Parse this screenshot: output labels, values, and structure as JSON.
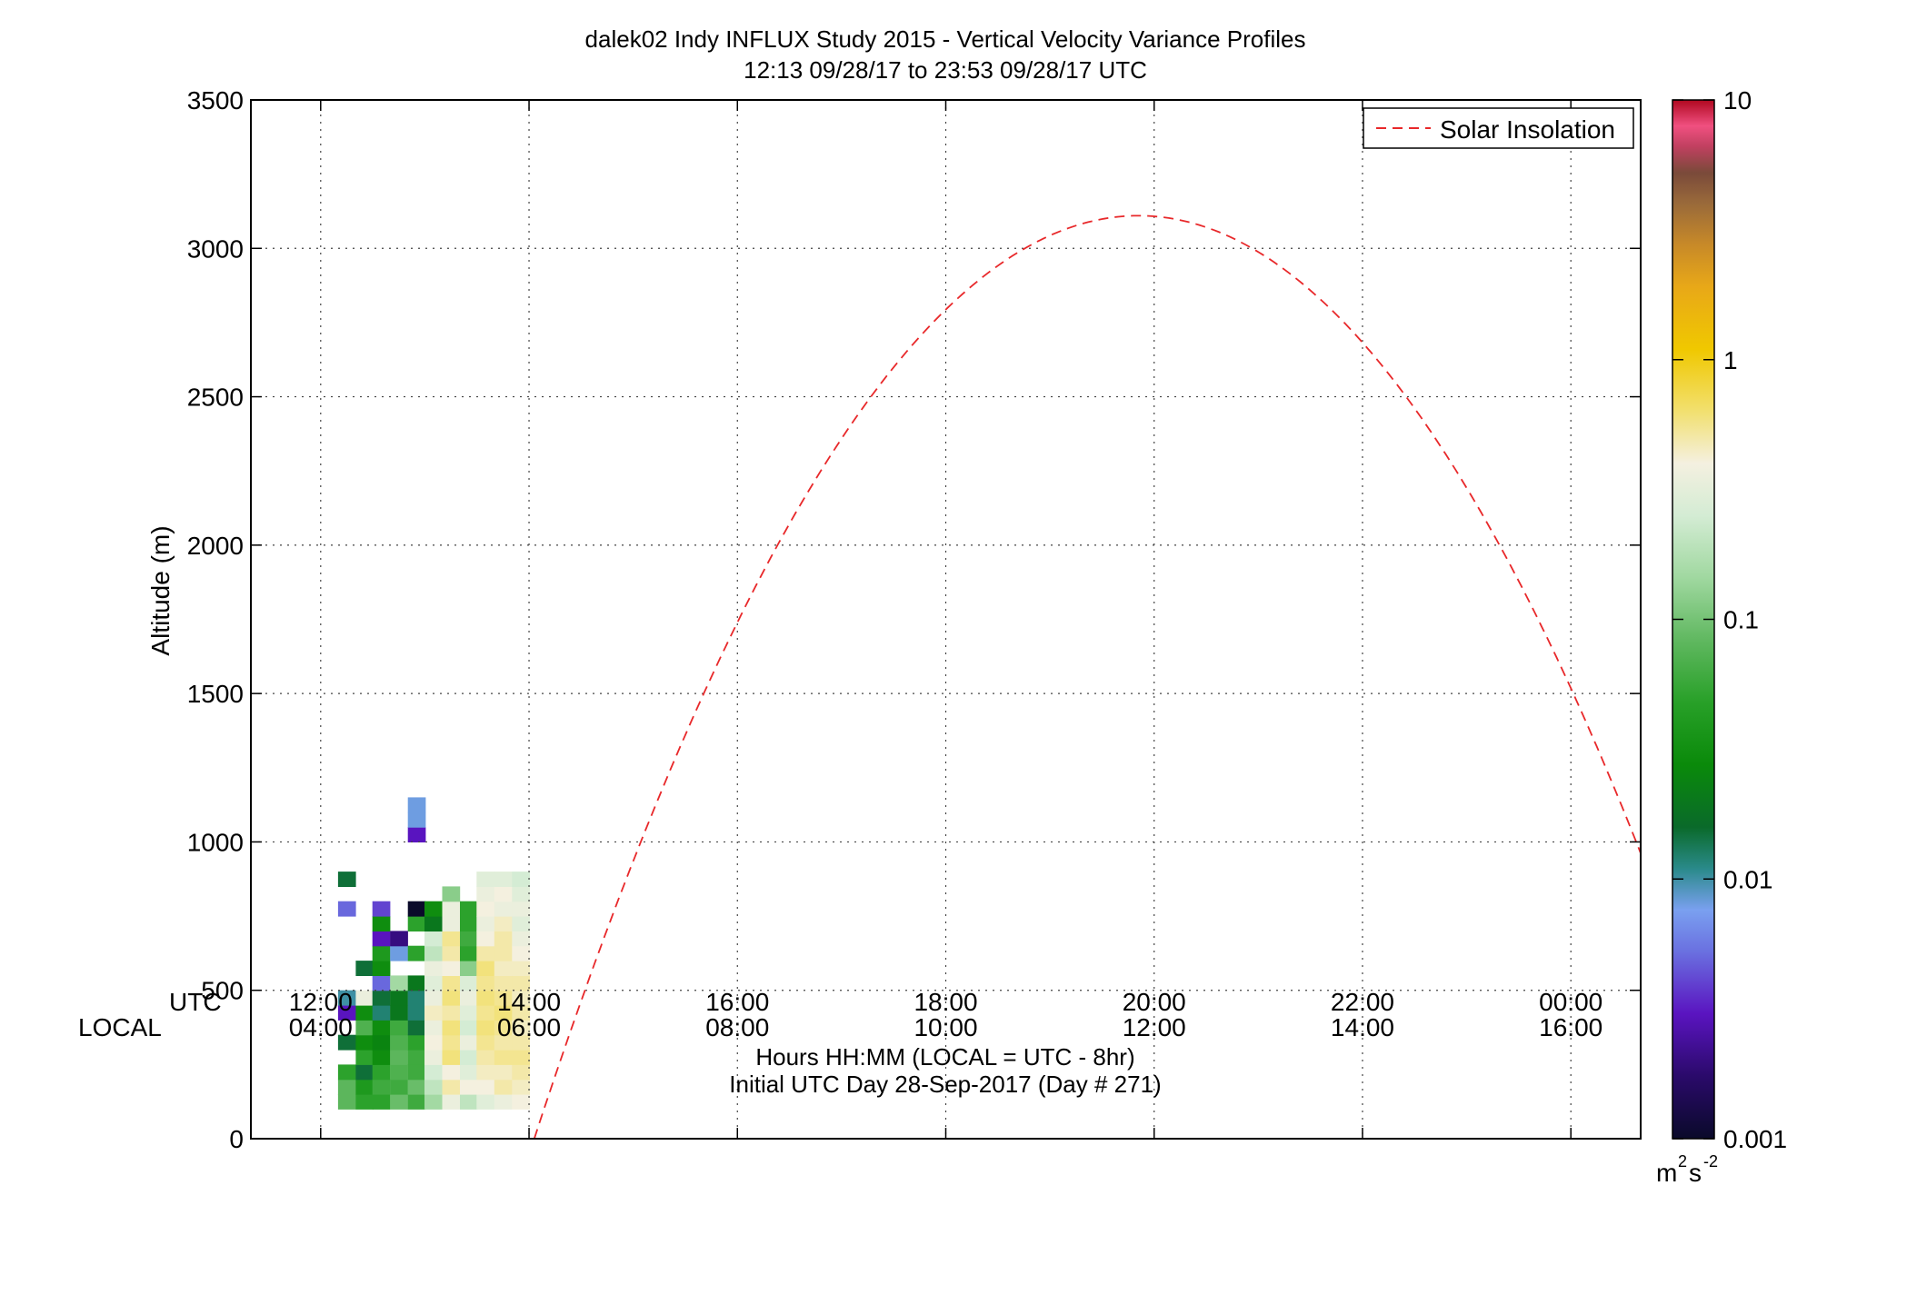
{
  "chart_data": {
    "type": "heatmap",
    "title": "dalek02 Indy INFLUX Study 2015 - Vertical Velocity Variance Profiles",
    "subtitle": "12:13 09/28/17 to 23:53 09/28/17  UTC",
    "ylabel": "Altitude (m)",
    "xlabel": "Hours HH:MM  (LOCAL = UTC - 8hr)",
    "xlabel2": "Initial UTC Day 28-Sep-2017 (Day # 271)",
    "utc_row_label": "UTC",
    "local_row_label": "LOCAL",
    "x_range_hours_utc": [
      11.33,
      24.67
    ],
    "ylim": [
      0,
      3500
    ],
    "yticks": [
      0,
      500,
      1000,
      1500,
      2000,
      2500,
      3000,
      3500
    ],
    "xticks_hours": [
      12,
      14,
      16,
      18,
      20,
      22,
      24
    ],
    "xtick_labels_utc": [
      "12:00",
      "14:00",
      "16:00",
      "18:00",
      "20:00",
      "22:00",
      "00:00"
    ],
    "xtick_labels_local": [
      "04:00",
      "06:00",
      "08:00",
      "10:00",
      "12:00",
      "14:00",
      "16:00"
    ],
    "grid": true,
    "grid_color": "#444444",
    "legend_position": "top-right",
    "legend_label": "Solar Insolation",
    "solar_color": "#e8282a",
    "solar_curve": {
      "start_hour": 14.05,
      "end_hour": 25.65,
      "peak_altitude": 3110,
      "peak_hour": 19.85
    },
    "colorbar": {
      "scale": "log",
      "range": [
        0.001,
        10
      ],
      "tick_labels": [
        "0.001",
        "0.01",
        "0.1",
        "1",
        "10"
      ],
      "unit_base": "m",
      "unit_sup1": "2",
      "unit_mid": "s",
      "unit_sup2": "-2",
      "stops": [
        [
          0.0,
          "#0a0a2a"
        ],
        [
          0.06,
          "#2a0a6a"
        ],
        [
          0.12,
          "#5a14c0"
        ],
        [
          0.18,
          "#6a70e0"
        ],
        [
          0.22,
          "#7aa0f0"
        ],
        [
          0.26,
          "#2a8a8a"
        ],
        [
          0.3,
          "#0a6a2a"
        ],
        [
          0.36,
          "#0a8a0a"
        ],
        [
          0.42,
          "#28a028"
        ],
        [
          0.48,
          "#60b860"
        ],
        [
          0.54,
          "#a0d8a0"
        ],
        [
          0.6,
          "#d4ecd4"
        ],
        [
          0.65,
          "#f4f0e0"
        ],
        [
          0.7,
          "#f2e070"
        ],
        [
          0.76,
          "#f0c800"
        ],
        [
          0.82,
          "#e8a818"
        ],
        [
          0.86,
          "#c88a28"
        ],
        [
          0.9,
          "#9a6a3a"
        ],
        [
          0.93,
          "#7a4a3a"
        ],
        [
          0.955,
          "#c04060"
        ],
        [
          0.975,
          "#f05080"
        ],
        [
          1.0,
          "#b00820"
        ]
      ]
    },
    "bin_hours": 0.1667,
    "bin_meters": 50,
    "columns": [
      {
        "t": 12.25,
        "cells": [
          [
            100,
            0.08
          ],
          [
            150,
            0.08
          ],
          [
            200,
            0.05
          ],
          [
            300,
            0.015
          ],
          [
            400,
            0.003
          ],
          [
            450,
            0.01
          ],
          [
            750,
            0.005
          ],
          [
            850,
            0.015
          ]
        ]
      },
      {
        "t": 12.42,
        "cells": [
          [
            100,
            0.05
          ],
          [
            150,
            0.04
          ],
          [
            200,
            0.015
          ],
          [
            250,
            0.05
          ],
          [
            300,
            0.03
          ],
          [
            350,
            0.07
          ],
          [
            400,
            0.03
          ],
          [
            450,
            0.35
          ],
          [
            550,
            0.015
          ]
        ]
      },
      {
        "t": 12.58,
        "cells": [
          [
            100,
            0.05
          ],
          [
            150,
            0.06
          ],
          [
            200,
            0.05
          ],
          [
            250,
            0.03
          ],
          [
            300,
            0.025
          ],
          [
            350,
            0.03
          ],
          [
            400,
            0.012
          ],
          [
            450,
            0.015
          ],
          [
            500,
            0.005
          ],
          [
            550,
            0.03
          ],
          [
            600,
            0.04
          ],
          [
            650,
            0.003
          ],
          [
            700,
            0.03
          ],
          [
            750,
            0.004
          ]
        ]
      },
      {
        "t": 12.75,
        "cells": [
          [
            100,
            0.09
          ],
          [
            150,
            0.06
          ],
          [
            200,
            0.07
          ],
          [
            250,
            0.08
          ],
          [
            300,
            0.07
          ],
          [
            350,
            0.06
          ],
          [
            400,
            0.02
          ],
          [
            450,
            0.02
          ],
          [
            500,
            0.15
          ],
          [
            600,
            0.008
          ],
          [
            650,
            0.002
          ]
        ]
      },
      {
        "t": 12.92,
        "cells": [
          [
            100,
            0.06
          ],
          [
            150,
            0.09
          ],
          [
            200,
            0.06
          ],
          [
            250,
            0.06
          ],
          [
            300,
            0.05
          ],
          [
            350,
            0.015
          ],
          [
            400,
            0.012
          ],
          [
            450,
            0.012
          ],
          [
            500,
            0.02
          ],
          [
            600,
            0.05
          ],
          [
            700,
            0.05
          ],
          [
            750,
            0.001
          ],
          [
            1000,
            0.003
          ],
          [
            1050,
            0.008
          ],
          [
            1100,
            0.008
          ]
        ]
      },
      {
        "t": 13.08,
        "cells": [
          [
            100,
            0.15
          ],
          [
            150,
            0.2
          ],
          [
            200,
            0.25
          ],
          [
            250,
            0.35
          ],
          [
            300,
            0.4
          ],
          [
            350,
            0.35
          ],
          [
            400,
            0.45
          ],
          [
            450,
            0.35
          ],
          [
            500,
            0.3
          ],
          [
            550,
            0.35
          ],
          [
            600,
            0.2
          ],
          [
            650,
            0.25
          ],
          [
            700,
            0.02
          ],
          [
            750,
            0.03
          ]
        ]
      },
      {
        "t": 13.25,
        "cells": [
          [
            100,
            0.35
          ],
          [
            150,
            0.5
          ],
          [
            200,
            0.4
          ],
          [
            250,
            0.6
          ],
          [
            300,
            0.55
          ],
          [
            350,
            0.6
          ],
          [
            400,
            0.5
          ],
          [
            450,
            0.6
          ],
          [
            500,
            0.55
          ],
          [
            550,
            0.4
          ],
          [
            600,
            0.5
          ],
          [
            650,
            0.55
          ],
          [
            700,
            0.35
          ],
          [
            750,
            0.35
          ],
          [
            800,
            0.12
          ]
        ]
      },
      {
        "t": 13.42,
        "cells": [
          [
            100,
            0.2
          ],
          [
            150,
            0.4
          ],
          [
            200,
            0.3
          ],
          [
            250,
            0.25
          ],
          [
            300,
            0.35
          ],
          [
            350,
            0.25
          ],
          [
            400,
            0.3
          ],
          [
            450,
            0.35
          ],
          [
            500,
            0.28
          ],
          [
            550,
            0.12
          ],
          [
            600,
            0.05
          ],
          [
            650,
            0.06
          ],
          [
            700,
            0.05
          ],
          [
            750,
            0.05
          ]
        ]
      },
      {
        "t": 13.58,
        "cells": [
          [
            100,
            0.3
          ],
          [
            150,
            0.4
          ],
          [
            200,
            0.45
          ],
          [
            250,
            0.5
          ],
          [
            300,
            0.55
          ],
          [
            350,
            0.6
          ],
          [
            400,
            0.55
          ],
          [
            450,
            0.6
          ],
          [
            500,
            0.55
          ],
          [
            550,
            0.6
          ],
          [
            600,
            0.5
          ],
          [
            650,
            0.4
          ],
          [
            700,
            0.35
          ],
          [
            750,
            0.4
          ],
          [
            800,
            0.35
          ],
          [
            850,
            0.3
          ]
        ]
      },
      {
        "t": 13.75,
        "cells": [
          [
            100,
            0.35
          ],
          [
            150,
            0.5
          ],
          [
            200,
            0.45
          ],
          [
            250,
            0.55
          ],
          [
            300,
            0.5
          ],
          [
            350,
            0.55
          ],
          [
            400,
            0.6
          ],
          [
            450,
            0.55
          ],
          [
            500,
            0.5
          ],
          [
            550,
            0.45
          ],
          [
            600,
            0.5
          ],
          [
            650,
            0.5
          ],
          [
            700,
            0.45
          ],
          [
            750,
            0.35
          ],
          [
            800,
            0.4
          ],
          [
            850,
            0.3
          ]
        ]
      },
      {
        "t": 13.92,
        "cells": [
          [
            100,
            0.4
          ],
          [
            150,
            0.45
          ],
          [
            200,
            0.5
          ],
          [
            250,
            0.55
          ],
          [
            300,
            0.5
          ],
          [
            350,
            0.45
          ],
          [
            400,
            0.5
          ],
          [
            450,
            0.45
          ],
          [
            500,
            0.5
          ],
          [
            550,
            0.45
          ],
          [
            600,
            0.4
          ],
          [
            650,
            0.35
          ],
          [
            700,
            0.3
          ],
          [
            750,
            0.35
          ],
          [
            800,
            0.3
          ],
          [
            850,
            0.25
          ]
        ]
      }
    ]
  }
}
